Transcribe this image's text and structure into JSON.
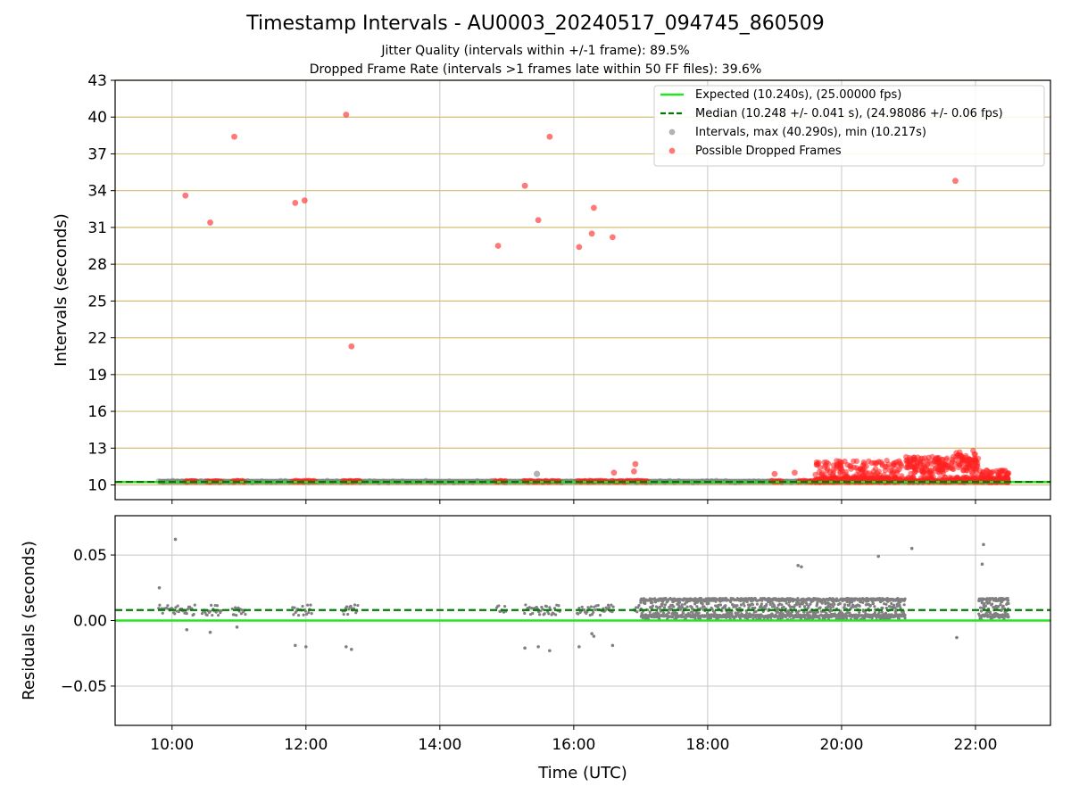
{
  "title": "Timestamp Intervals - AU0003_20240517_094745_860509",
  "subtitle_lines": [
    "Jitter Quality (intervals within +/-1 frame): 89.5%",
    "Dropped Frame Rate (intervals >1 frames late within 50 FF files): 39.6%"
  ],
  "colors": {
    "expected": "#22e622",
    "median": "#007a00",
    "intervals": "#808080",
    "dropped": "#ff2020",
    "ygrid_top": "#d4bf74",
    "grid": "#c8c8c8"
  },
  "chart_data": [
    {
      "type": "scatter",
      "title": "",
      "xlabel": "",
      "ylabel": "Intervals (seconds)",
      "x_unit": "time of day (UTC), decimal hours",
      "xlim": [
        9.15,
        23.12
      ],
      "ylim": [
        8.8,
        43
      ],
      "xticks": [
        "10:00",
        "12:00",
        "14:00",
        "16:00",
        "18:00",
        "20:00",
        "22:00"
      ],
      "yticks": [
        10,
        13,
        16,
        19,
        22,
        25,
        28,
        31,
        34,
        37,
        40,
        43
      ],
      "grid": "horizontal (gold) and vertical (grey)",
      "legend_position": "top-right",
      "legend": [
        "Expected (10.240s), (25.00000 fps)",
        "Median (10.248 +/- 0.041 s), (24.98086 +/- 0.06 fps)",
        "Intervals, max (40.290s), min (10.217s)",
        "Possible Dropped Frames"
      ],
      "expected_interval": 10.24,
      "median_interval": 10.248,
      "intervals_range": [
        9.8,
        22.5
      ],
      "intervals_outlier": {
        "x": 15.45,
        "y": 10.9
      },
      "dropped_outliers": [
        {
          "x": 10.2,
          "y": 33.6
        },
        {
          "x": 10.57,
          "y": 31.4
        },
        {
          "x": 10.93,
          "y": 38.4
        },
        {
          "x": 11.84,
          "y": 33.0
        },
        {
          "x": 11.98,
          "y": 33.2
        },
        {
          "x": 12.6,
          "y": 40.2
        },
        {
          "x": 12.68,
          "y": 21.3
        },
        {
          "x": 14.87,
          "y": 29.5
        },
        {
          "x": 15.27,
          "y": 34.4
        },
        {
          "x": 15.47,
          "y": 31.6
        },
        {
          "x": 15.64,
          "y": 38.4
        },
        {
          "x": 16.08,
          "y": 29.4
        },
        {
          "x": 16.27,
          "y": 30.5
        },
        {
          "x": 16.3,
          "y": 32.6
        },
        {
          "x": 16.58,
          "y": 30.2
        },
        {
          "x": 21.7,
          "y": 34.8
        },
        {
          "x": 16.6,
          "y": 11.0
        },
        {
          "x": 16.9,
          "y": 11.1
        },
        {
          "x": 16.92,
          "y": 11.7
        },
        {
          "x": 19.0,
          "y": 10.9
        },
        {
          "x": 19.3,
          "y": 11.0
        }
      ],
      "dropped_baseline_segments": [
        [
          10.2,
          10.37
        ],
        [
          10.52,
          10.75
        ],
        [
          10.9,
          11.08
        ],
        [
          11.8,
          12.15
        ],
        [
          12.55,
          12.82
        ],
        [
          14.82,
          14.98
        ],
        [
          15.25,
          15.8
        ],
        [
          16.05,
          16.5
        ],
        [
          16.55,
          16.85
        ],
        [
          16.9,
          17.1
        ],
        [
          18.95,
          19.12
        ],
        [
          19.35,
          19.55
        ],
        [
          19.55,
          20.9
        ],
        [
          20.95,
          22.5
        ]
      ],
      "dropped_clusters": [
        {
          "x_range": [
            19.6,
            20.9
          ],
          "y_range": [
            10.2,
            12.0
          ]
        },
        {
          "x_range": [
            20.95,
            22.05
          ],
          "y_range": [
            10.2,
            12.9
          ]
        },
        {
          "x_range": [
            22.05,
            22.5
          ],
          "y_range": [
            10.2,
            11.2
          ]
        }
      ]
    },
    {
      "type": "scatter",
      "title": "",
      "xlabel": "Time (UTC)",
      "ylabel": "Residuals (seconds)",
      "x_unit": "time of day (UTC), decimal hours",
      "xlim": [
        9.15,
        23.12
      ],
      "ylim": [
        -0.08,
        0.08
      ],
      "xticks": [
        "10:00",
        "12:00",
        "14:00",
        "16:00",
        "18:00",
        "20:00",
        "22:00"
      ],
      "yticks": [
        "−0.05",
        "0.00",
        "0.05"
      ],
      "ytick_values": [
        -0.05,
        0.0,
        0.05
      ],
      "grid": "horizontal and vertical (grey)",
      "expected_residual": 0.0,
      "median_residual": 0.008,
      "outliers": [
        {
          "x": 9.81,
          "y": 0.025
        },
        {
          "x": 10.05,
          "y": 0.062
        },
        {
          "x": 10.22,
          "y": -0.007
        },
        {
          "x": 10.57,
          "y": -0.009
        },
        {
          "x": 10.97,
          "y": -0.005
        },
        {
          "x": 11.84,
          "y": -0.019
        },
        {
          "x": 12.0,
          "y": -0.02
        },
        {
          "x": 12.6,
          "y": -0.02
        },
        {
          "x": 12.68,
          "y": -0.022
        },
        {
          "x": 15.27,
          "y": -0.021
        },
        {
          "x": 15.47,
          "y": -0.02
        },
        {
          "x": 15.64,
          "y": -0.023
        },
        {
          "x": 16.08,
          "y": -0.02
        },
        {
          "x": 16.27,
          "y": -0.01
        },
        {
          "x": 16.3,
          "y": -0.012
        },
        {
          "x": 16.58,
          "y": -0.019
        },
        {
          "x": 19.35,
          "y": 0.042
        },
        {
          "x": 19.4,
          "y": 0.041
        },
        {
          "x": 20.55,
          "y": 0.049
        },
        {
          "x": 21.05,
          "y": 0.055
        },
        {
          "x": 21.72,
          "y": -0.013
        },
        {
          "x": 22.1,
          "y": 0.043
        },
        {
          "x": 22.12,
          "y": 0.058
        }
      ],
      "band_segments": [
        [
          9.8,
          10.35
        ],
        [
          10.45,
          10.75
        ],
        [
          10.9,
          11.1
        ],
        [
          11.8,
          12.1
        ],
        [
          12.55,
          12.78
        ],
        [
          14.85,
          15.0
        ],
        [
          15.25,
          15.8
        ],
        [
          16.05,
          16.6
        ],
        [
          16.9,
          17.0
        ]
      ],
      "dense_band_segments": [
        [
          17.0,
          20.95
        ],
        [
          22.05,
          22.5
        ]
      ],
      "dense_band_y_range": [
        0.0005,
        0.017
      ]
    }
  ]
}
